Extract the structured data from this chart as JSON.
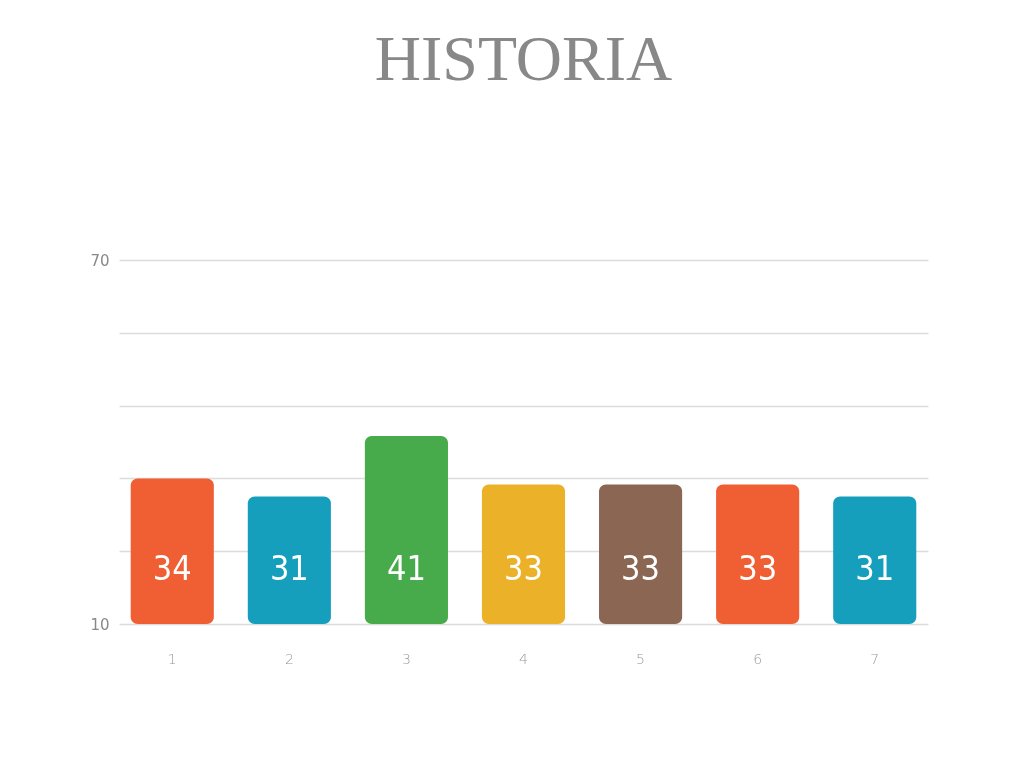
{
  "chart_data": {
    "type": "bar",
    "title": "HISTORIA",
    "categories": [
      "1",
      "2",
      "3",
      "4",
      "5",
      "6",
      "7"
    ],
    "values": [
      34,
      31,
      41,
      33,
      33,
      33,
      31
    ],
    "colors": [
      "#f05e34",
      "#159fbd",
      "#48ab4b",
      "#ebb128",
      "#8b6653",
      "#f05e34",
      "#159fbd"
    ],
    "ylim": [
      10,
      70
    ],
    "yticks": [
      10,
      {
        "value": 22,
        "label": null
      },
      {
        "value": 34,
        "label": null
      },
      {
        "value": 46,
        "label": null
      },
      {
        "value": 58,
        "label": null
      },
      70
    ],
    "grid": "y",
    "data_labels": true
  }
}
